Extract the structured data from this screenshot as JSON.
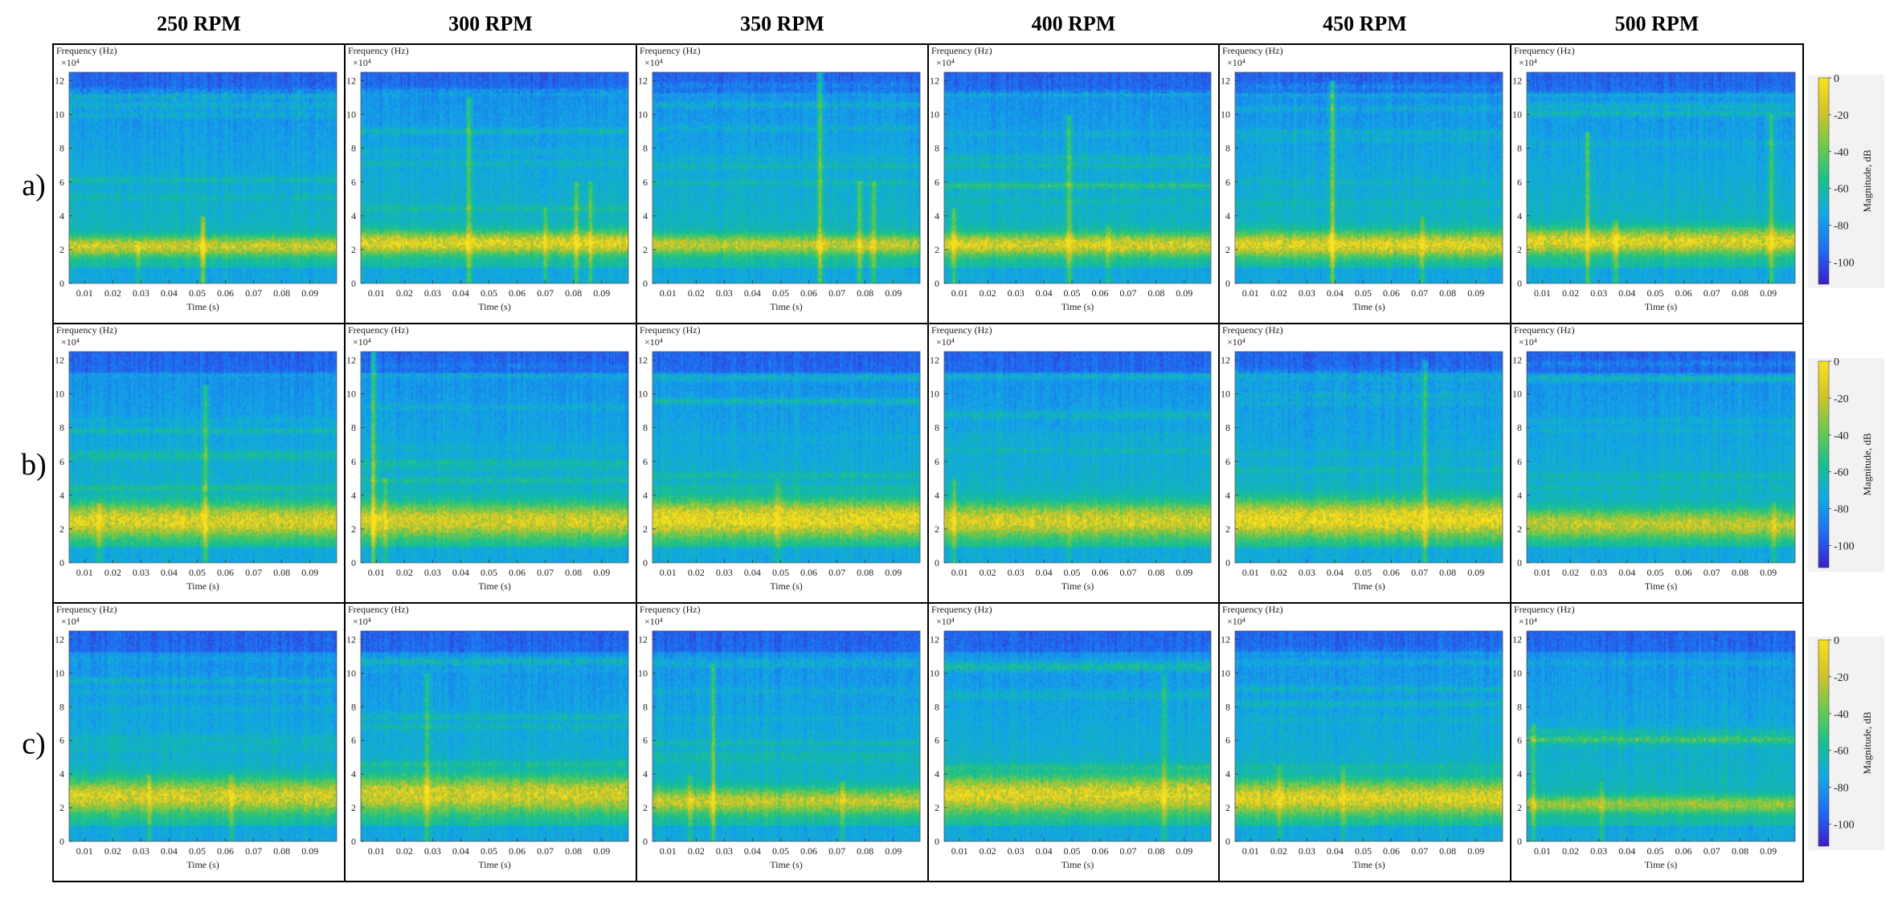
{
  "chart_data": {
    "type": "heatmap",
    "description_kind": "spectrogram grid",
    "columns": [
      "250 RPM",
      "300 RPM",
      "350 RPM",
      "400 RPM",
      "450 RPM",
      "500 RPM"
    ],
    "rows": [
      "a)",
      "b)",
      "c)"
    ],
    "ylabel": "Frequency (Hz)",
    "y_multiplier": "×10⁴",
    "xlabel": "Time (s)",
    "x_ticks": [
      "0.01",
      "0.02",
      "0.03",
      "0.04",
      "0.05",
      "0.06",
      "0.07",
      "0.08",
      "0.09"
    ],
    "x_range": [
      0.0045,
      0.0995
    ],
    "y_ticks": [
      "0",
      "2",
      "4",
      "6",
      "8",
      "10",
      "12"
    ],
    "y_range": [
      0,
      12.5
    ],
    "colorbar": {
      "label": "Magnitude, dB",
      "ticks": [
        "0",
        "-20",
        "-40",
        "-60",
        "-80",
        "-100"
      ],
      "range": [
        -112,
        0
      ],
      "colors": [
        "#3b1ec8",
        "#1f6df0",
        "#12a7e6",
        "#17c08e",
        "#6ec94a",
        "#d3c22a",
        "#f7e21c"
      ]
    },
    "panels": [
      {
        "row": 0,
        "col": 0,
        "band_center": 2.2,
        "band_width": 1.4,
        "band_intensity": 0.75,
        "spikes": [
          {
            "t": 0.052,
            "top": 4.0,
            "s": 1.0
          },
          {
            "t": 0.029,
            "top": 2.5,
            "s": 0.6
          }
        ]
      },
      {
        "row": 0,
        "col": 1,
        "band_center": 2.4,
        "band_width": 1.6,
        "band_intensity": 0.85,
        "spikes": [
          {
            "t": 0.043,
            "top": 11.0,
            "s": 0.8
          },
          {
            "t": 0.07,
            "top": 4.5,
            "s": 0.7
          },
          {
            "t": 0.081,
            "top": 6.0,
            "s": 0.8
          },
          {
            "t": 0.086,
            "top": 6.0,
            "s": 0.7
          }
        ]
      },
      {
        "row": 0,
        "col": 2,
        "band_center": 2.3,
        "band_width": 1.4,
        "band_intensity": 0.7,
        "spikes": [
          {
            "t": 0.064,
            "top": 12.5,
            "s": 1.0
          },
          {
            "t": 0.078,
            "top": 6.0,
            "s": 0.7
          },
          {
            "t": 0.083,
            "top": 6.0,
            "s": 0.7
          }
        ]
      },
      {
        "row": 0,
        "col": 3,
        "band_center": 2.3,
        "band_width": 1.6,
        "band_intensity": 0.8,
        "spikes": [
          {
            "t": 0.008,
            "top": 4.5,
            "s": 0.7
          },
          {
            "t": 0.049,
            "top": 10.0,
            "s": 0.8
          },
          {
            "t": 0.063,
            "top": 3.5,
            "s": 0.5
          }
        ]
      },
      {
        "row": 0,
        "col": 4,
        "band_center": 2.3,
        "band_width": 1.8,
        "band_intensity": 0.85,
        "spikes": [
          {
            "t": 0.039,
            "top": 12.0,
            "s": 1.0
          },
          {
            "t": 0.071,
            "top": 4.0,
            "s": 0.6
          }
        ]
      },
      {
        "row": 0,
        "col": 5,
        "band_center": 2.5,
        "band_width": 1.8,
        "band_intensity": 0.85,
        "spikes": [
          {
            "t": 0.026,
            "top": 9.0,
            "s": 0.9
          },
          {
            "t": 0.091,
            "top": 10.0,
            "s": 0.7
          },
          {
            "t": 0.036,
            "top": 3.8,
            "s": 0.6
          }
        ]
      },
      {
        "row": 1,
        "col": 0,
        "band_center": 2.5,
        "band_width": 2.4,
        "band_intensity": 0.85,
        "spikes": [
          {
            "t": 0.053,
            "top": 10.5,
            "s": 0.8
          },
          {
            "t": 0.015,
            "top": 3.5,
            "s": 0.5
          }
        ]
      },
      {
        "row": 1,
        "col": 1,
        "band_center": 2.5,
        "band_width": 2.4,
        "band_intensity": 0.8,
        "spikes": [
          {
            "t": 0.009,
            "top": 12.5,
            "s": 1.0
          },
          {
            "t": 0.013,
            "top": 5.0,
            "s": 0.5
          }
        ]
      },
      {
        "row": 1,
        "col": 2,
        "band_center": 2.6,
        "band_width": 2.6,
        "band_intensity": 0.95,
        "spikes": [
          {
            "t": 0.049,
            "top": 5.0,
            "s": 0.5
          }
        ]
      },
      {
        "row": 1,
        "col": 3,
        "band_center": 2.5,
        "band_width": 2.4,
        "band_intensity": 0.8,
        "spikes": [
          {
            "t": 0.008,
            "top": 5.0,
            "s": 0.6
          },
          {
            "t": 0.049,
            "top": 3.5,
            "s": 0.4
          }
        ]
      },
      {
        "row": 1,
        "col": 4,
        "band_center": 2.6,
        "band_width": 2.6,
        "band_intensity": 0.95,
        "spikes": [
          {
            "t": 0.072,
            "top": 12.0,
            "s": 0.7
          }
        ]
      },
      {
        "row": 1,
        "col": 5,
        "band_center": 2.3,
        "band_width": 2.0,
        "band_intensity": 0.7,
        "spikes": [
          {
            "t": 0.092,
            "top": 3.5,
            "s": 0.5
          }
        ]
      },
      {
        "row": 2,
        "col": 0,
        "band_center": 2.7,
        "band_width": 2.4,
        "band_intensity": 0.8,
        "spikes": [
          {
            "t": 0.033,
            "top": 4.0,
            "s": 0.5
          },
          {
            "t": 0.062,
            "top": 4.0,
            "s": 0.5
          }
        ]
      },
      {
        "row": 2,
        "col": 1,
        "band_center": 2.8,
        "band_width": 2.6,
        "band_intensity": 0.8,
        "spikes": [
          {
            "t": 0.028,
            "top": 10.0,
            "s": 0.7
          }
        ]
      },
      {
        "row": 2,
        "col": 2,
        "band_center": 2.4,
        "band_width": 1.8,
        "band_intensity": 0.7,
        "spikes": [
          {
            "t": 0.026,
            "top": 10.5,
            "s": 0.9
          },
          {
            "t": 0.018,
            "top": 4.0,
            "s": 0.6
          },
          {
            "t": 0.072,
            "top": 3.5,
            "s": 0.5
          }
        ]
      },
      {
        "row": 2,
        "col": 3,
        "band_center": 2.8,
        "band_width": 2.6,
        "band_intensity": 0.85,
        "spikes": [
          {
            "t": 0.083,
            "top": 10.0,
            "s": 0.6
          }
        ]
      },
      {
        "row": 2,
        "col": 4,
        "band_center": 2.6,
        "band_width": 2.4,
        "band_intensity": 0.85,
        "spikes": [
          {
            "t": 0.02,
            "top": 4.5,
            "s": 0.5
          },
          {
            "t": 0.043,
            "top": 4.5,
            "s": 0.5
          }
        ]
      },
      {
        "row": 2,
        "col": 5,
        "band_center": 2.2,
        "band_width": 1.2,
        "band_intensity": 0.55,
        "spikes": [
          {
            "t": 0.007,
            "top": 7.0,
            "s": 0.6
          },
          {
            "t": 0.031,
            "top": 3.5,
            "s": 0.5
          }
        ]
      }
    ]
  }
}
